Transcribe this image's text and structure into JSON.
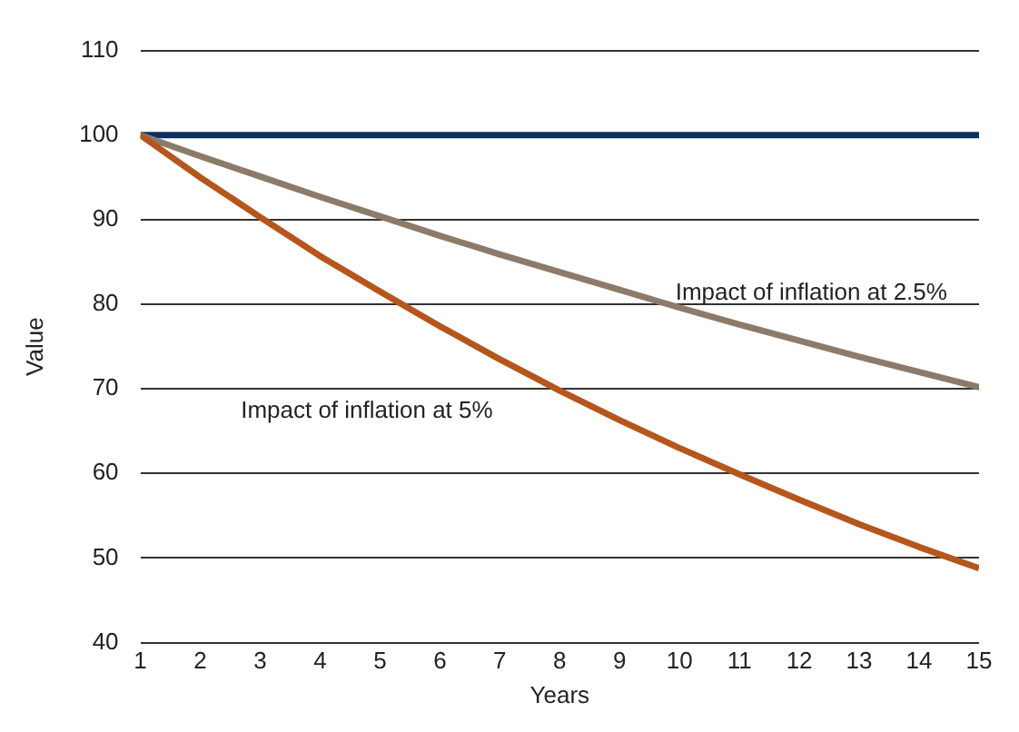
{
  "chart_data": {
    "type": "line",
    "xlabel": "Years",
    "ylabel": "Value",
    "x": [
      1,
      2,
      3,
      4,
      5,
      6,
      7,
      8,
      9,
      10,
      11,
      12,
      13,
      14,
      15
    ],
    "series": [
      {
        "color": "#0c2d5e",
        "values": [
          100,
          100,
          100,
          100,
          100,
          100,
          100,
          100,
          100,
          100,
          100,
          100,
          100,
          100,
          100
        ]
      },
      {
        "color": "#8c7b6b",
        "values": [
          100,
          97.5,
          95.1,
          92.7,
          90.4,
          88.1,
          85.9,
          83.8,
          81.7,
          79.6,
          77.6,
          75.7,
          73.8,
          72.0,
          70.2
        ]
      },
      {
        "color": "#b5561c",
        "values": [
          100,
          95,
          90.3,
          85.7,
          81.5,
          77.4,
          73.5,
          69.8,
          66.3,
          63.0,
          59.9,
          56.9,
          54.0,
          51.3,
          48.8
        ]
      }
    ],
    "xlim": [
      1,
      15
    ],
    "xticks": [
      1,
      2,
      3,
      4,
      5,
      6,
      7,
      8,
      9,
      10,
      11,
      12,
      13,
      14,
      15
    ],
    "ylim": [
      40,
      110
    ],
    "yticks": [
      40,
      50,
      60,
      70,
      80,
      90,
      100,
      110
    ],
    "grid": "y",
    "legend": false,
    "marker": "none",
    "line_style": "solid",
    "annotations": [
      "Impact of inflation at 2.5%",
      "Impact of inflation at 5%"
    ]
  }
}
